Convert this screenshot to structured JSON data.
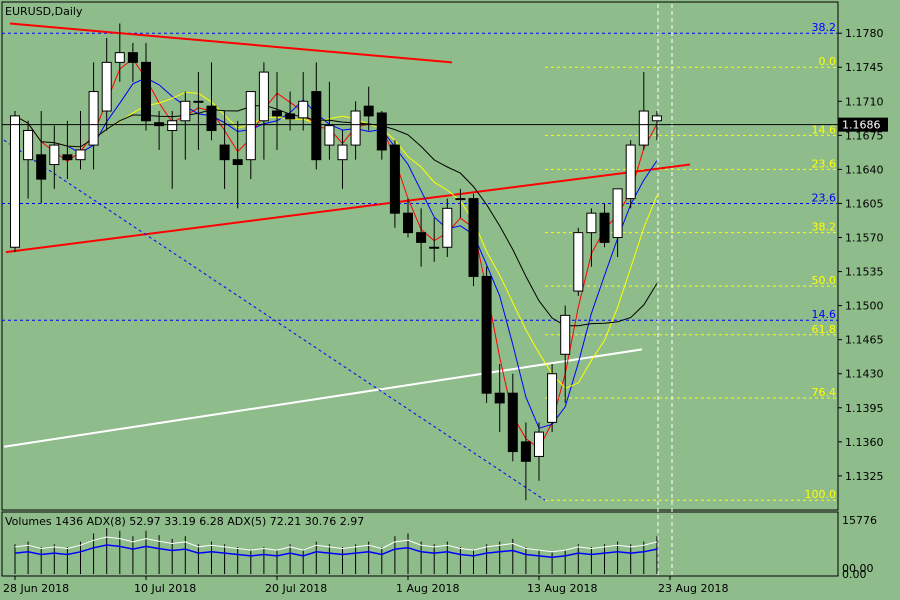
{
  "chart_data": {
    "type": "candlestick",
    "symbol_label": "EURUSD,Daily",
    "indicator_label": "Volumes 1436 ADX(8) 52.97 33.19 6.28 ADX(5) 72.21 30.76 2.97",
    "current_price": "1.1686",
    "price_axis_ticks": [
      "1.1780",
      "1.1745",
      "1.1710",
      "1.1675",
      "1.1640",
      "1.1605",
      "1.1570",
      "1.1535",
      "1.1500",
      "1.1465",
      "1.1430",
      "1.1395",
      "1.1360",
      "1.1325"
    ],
    "price_range": [
      1.1292,
      1.181
    ],
    "indicator_axis_ticks": [
      "15776",
      "00.00",
      "0.00"
    ],
    "x_axis_labels": [
      {
        "bar": 0,
        "text": "28 Jun 2018"
      },
      {
        "bar": 10,
        "text": "10 Jul 2018"
      },
      {
        "bar": 20,
        "text": "20 Jul 2018"
      },
      {
        "bar": 30,
        "text": "1 Aug 2018"
      },
      {
        "bar": 40,
        "text": "13 Aug 2018"
      },
      {
        "bar": 50,
        "text": "23 Aug 2018"
      }
    ],
    "candles": [
      {
        "o": 1.156,
        "h": 1.17,
        "l": 1.1555,
        "c": 1.1695
      },
      {
        "o": 1.165,
        "h": 1.169,
        "l": 1.161,
        "c": 1.168
      },
      {
        "o": 1.1655,
        "h": 1.17,
        "l": 1.1605,
        "c": 1.163
      },
      {
        "o": 1.1645,
        "h": 1.1685,
        "l": 1.162,
        "c": 1.1665
      },
      {
        "o": 1.1655,
        "h": 1.169,
        "l": 1.163,
        "c": 1.165
      },
      {
        "o": 1.165,
        "h": 1.17,
        "l": 1.164,
        "c": 1.166
      },
      {
        "o": 1.1665,
        "h": 1.175,
        "l": 1.164,
        "c": 1.172
      },
      {
        "o": 1.17,
        "h": 1.1775,
        "l": 1.168,
        "c": 1.175
      },
      {
        "o": 1.175,
        "h": 1.179,
        "l": 1.173,
        "c": 1.176
      },
      {
        "o": 1.176,
        "h": 1.177,
        "l": 1.173,
        "c": 1.175
      },
      {
        "o": 1.175,
        "h": 1.177,
        "l": 1.168,
        "c": 1.169
      },
      {
        "o": 1.1688,
        "h": 1.17,
        "l": 1.166,
        "c": 1.1685
      },
      {
        "o": 1.168,
        "h": 1.17,
        "l": 1.162,
        "c": 1.169
      },
      {
        "o": 1.169,
        "h": 1.172,
        "l": 1.165,
        "c": 1.171
      },
      {
        "o": 1.171,
        "h": 1.174,
        "l": 1.166,
        "c": 1.171
      },
      {
        "o": 1.1705,
        "h": 1.175,
        "l": 1.167,
        "c": 1.168
      },
      {
        "o": 1.1665,
        "h": 1.17,
        "l": 1.162,
        "c": 1.165
      },
      {
        "o": 1.165,
        "h": 1.169,
        "l": 1.16,
        "c": 1.1645
      },
      {
        "o": 1.165,
        "h": 1.172,
        "l": 1.163,
        "c": 1.172
      },
      {
        "o": 1.169,
        "h": 1.175,
        "l": 1.165,
        "c": 1.174
      },
      {
        "o": 1.17,
        "h": 1.174,
        "l": 1.166,
        "c": 1.1695
      },
      {
        "o": 1.1697,
        "h": 1.172,
        "l": 1.168,
        "c": 1.1692
      },
      {
        "o": 1.1693,
        "h": 1.174,
        "l": 1.168,
        "c": 1.171
      },
      {
        "o": 1.172,
        "h": 1.175,
        "l": 1.164,
        "c": 1.165
      },
      {
        "o": 1.1665,
        "h": 1.173,
        "l": 1.165,
        "c": 1.1685
      },
      {
        "o": 1.165,
        "h": 1.168,
        "l": 1.162,
        "c": 1.1665
      },
      {
        "o": 1.1665,
        "h": 1.171,
        "l": 1.165,
        "c": 1.17
      },
      {
        "o": 1.1705,
        "h": 1.1725,
        "l": 1.168,
        "c": 1.1695
      },
      {
        "o": 1.1698,
        "h": 1.17,
        "l": 1.165,
        "c": 1.166
      },
      {
        "o": 1.1665,
        "h": 1.167,
        "l": 1.158,
        "c": 1.1595
      },
      {
        "o": 1.1595,
        "h": 1.161,
        "l": 1.157,
        "c": 1.1575
      },
      {
        "o": 1.1575,
        "h": 1.16,
        "l": 1.154,
        "c": 1.1565
      },
      {
        "o": 1.156,
        "h": 1.159,
        "l": 1.1545,
        "c": 1.156
      },
      {
        "o": 1.156,
        "h": 1.161,
        "l": 1.155,
        "c": 1.16
      },
      {
        "o": 1.161,
        "h": 1.162,
        "l": 1.159,
        "c": 1.161
      },
      {
        "o": 1.161,
        "h": 1.1615,
        "l": 1.152,
        "c": 1.153
      },
      {
        "o": 1.153,
        "h": 1.154,
        "l": 1.14,
        "c": 1.141
      },
      {
        "o": 1.141,
        "h": 1.144,
        "l": 1.137,
        "c": 1.14
      },
      {
        "o": 1.141,
        "h": 1.143,
        "l": 1.134,
        "c": 1.135
      },
      {
        "o": 1.136,
        "h": 1.138,
        "l": 1.13,
        "c": 1.134
      },
      {
        "o": 1.1345,
        "h": 1.138,
        "l": 1.132,
        "c": 1.137
      },
      {
        "o": 1.138,
        "h": 1.144,
        "l": 1.137,
        "c": 1.143
      },
      {
        "o": 1.145,
        "h": 1.15,
        "l": 1.14,
        "c": 1.149
      },
      {
        "o": 1.1515,
        "h": 1.158,
        "l": 1.151,
        "c": 1.1575
      },
      {
        "o": 1.1575,
        "h": 1.16,
        "l": 1.154,
        "c": 1.1595
      },
      {
        "o": 1.1595,
        "h": 1.1605,
        "l": 1.156,
        "c": 1.1565
      },
      {
        "o": 1.157,
        "h": 1.162,
        "l": 1.155,
        "c": 1.162
      },
      {
        "o": 1.161,
        "h": 1.167,
        "l": 1.16,
        "c": 1.1665
      },
      {
        "o": 1.1665,
        "h": 1.174,
        "l": 1.166,
        "c": 1.17
      },
      {
        "o": 1.169,
        "h": 1.17,
        "l": 1.167,
        "c": 1.1695
      }
    ],
    "volume_samples": [
      0.55,
      0.6,
      0.5,
      0.55,
      0.5,
      0.6,
      0.75,
      0.85,
      0.8,
      0.7,
      0.8,
      0.72,
      0.65,
      0.7,
      0.55,
      0.6,
      0.55,
      0.5,
      0.45,
      0.5,
      0.45,
      0.55,
      0.45,
      0.6,
      0.55,
      0.5,
      0.55,
      0.6,
      0.5,
      0.7,
      0.75,
      0.6,
      0.55,
      0.6,
      0.5,
      0.45,
      0.55,
      0.6,
      0.65,
      0.5,
      0.45,
      0.4,
      0.45,
      0.55,
      0.5,
      0.55,
      0.6,
      0.55,
      0.6,
      0.7
    ],
    "horizontal_levels": [
      {
        "value": 1.178,
        "label": "38.2",
        "color": "#0000ff",
        "dashed": true
      },
      {
        "value": 1.1745,
        "label": "0.0",
        "color": "#ffff00",
        "dashed": true
      },
      {
        "value": 1.1675,
        "label": "14.6",
        "color": "#ffff00",
        "dashed": true
      },
      {
        "value": 1.164,
        "label": "23.6",
        "color": "#ffff00",
        "dashed": true
      },
      {
        "value": 1.1605,
        "label": "23.6",
        "color": "#0000ff",
        "dashed": true
      },
      {
        "value": 1.1575,
        "label": "38.2",
        "color": "#ffff00",
        "dashed": true
      },
      {
        "value": 1.152,
        "label": "50.0",
        "color": "#ffff00",
        "dashed": true
      },
      {
        "value": 1.1485,
        "label": "14.6",
        "color": "#0000ff",
        "dashed": true
      },
      {
        "value": 1.147,
        "label": "61.8",
        "color": "#ffff00",
        "dashed": true
      },
      {
        "value": 1.1405,
        "label": "76.4",
        "color": "#ffff00",
        "dashed": true
      },
      {
        "value": 1.13,
        "label": "100.0",
        "color": "#ffff00",
        "dashed": true
      }
    ],
    "colors": {
      "background": "#8fbc8b",
      "bull_candle": "#ffffff",
      "bear_candle": "#000000",
      "trendline_red": "#ff0000",
      "trendline_white": "#ffffff",
      "ma_red": "#ff0000",
      "ma_blue": "#0000ff",
      "ma_yellow": "#ffff00",
      "ma_black": "#000000"
    }
  }
}
